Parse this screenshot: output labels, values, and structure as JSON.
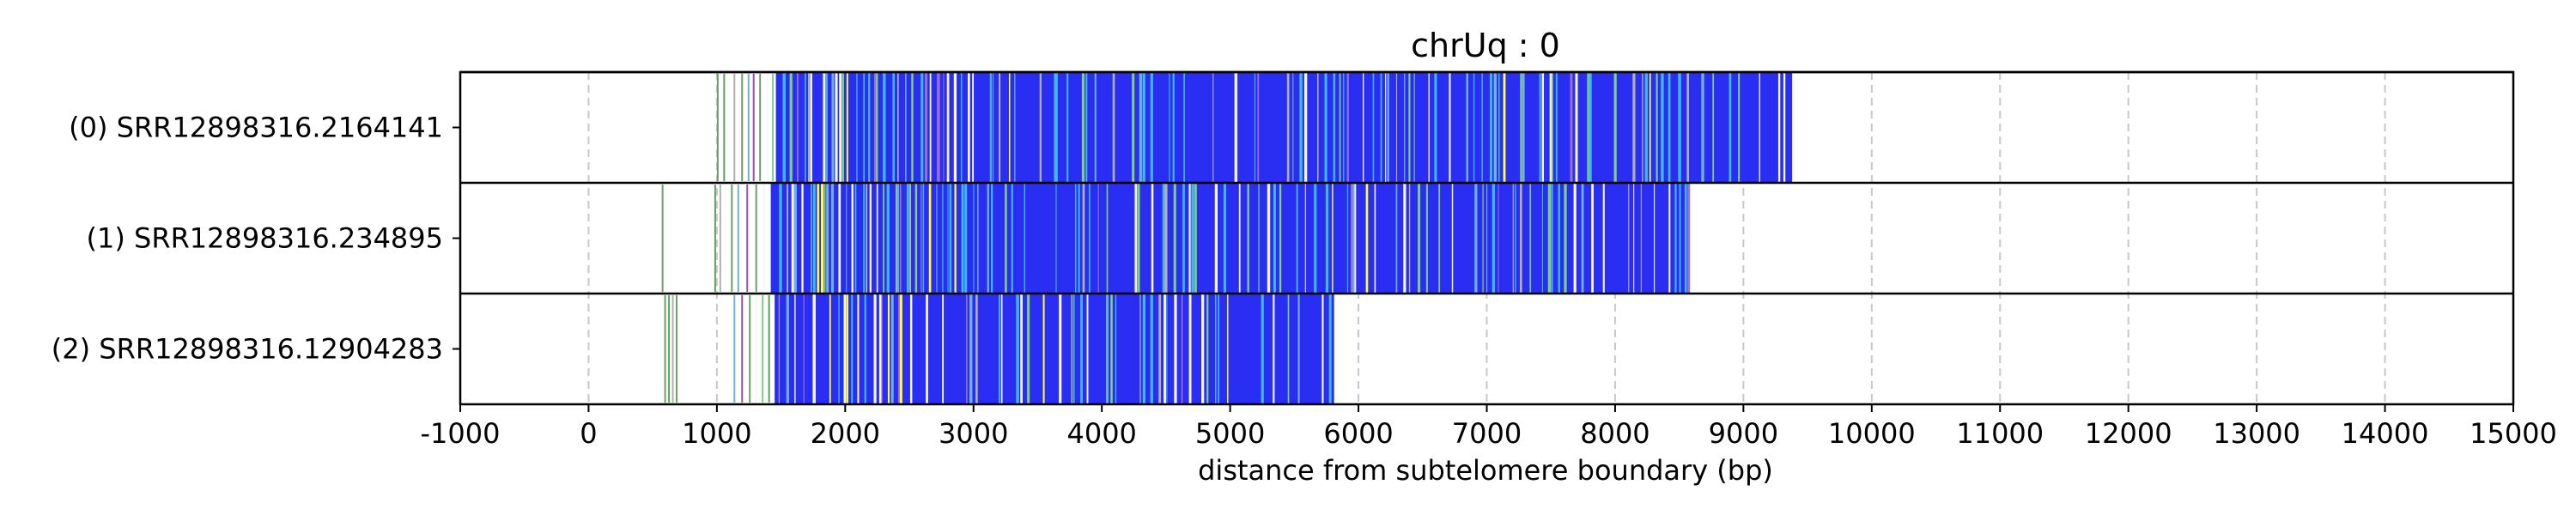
{
  "chart_data": {
    "type": "bar",
    "title": "chrUq : 0",
    "xlabel": "distance from subtelomere boundary (bp)",
    "ylabel": "",
    "xlim": [
      -1000,
      15000
    ],
    "xticks": [
      -1000,
      0,
      1000,
      2000,
      3000,
      4000,
      5000,
      6000,
      7000,
      8000,
      9000,
      10000,
      11000,
      12000,
      13000,
      14000,
      15000
    ],
    "grid": "x dashed",
    "colors": {
      "main": "#2a2ef2",
      "accents": [
        "#3fb8f0",
        "#f7f7f7",
        "#7fcf7f",
        "#ffff33",
        "#b0b0b0",
        "#9a6fd0",
        "#6fb0e0",
        "#a04da6"
      ]
    },
    "series": [
      {
        "name": "(0) SRR12898316.2164141",
        "end": 9380,
        "sparse_ticks": [
          1000,
          1050,
          1130,
          1190,
          1240,
          1280,
          1330,
          1390,
          1430
        ],
        "dense_start": 1460
      },
      {
        "name": "(1) SRR12898316.234895",
        "end": 8580,
        "sparse_ticks": [
          570,
          980,
          1020,
          1110,
          1160,
          1230,
          1300,
          1360
        ],
        "dense_start": 1420
      },
      {
        "name": "(2) SRR12898316.12904283",
        "end": 5810,
        "sparse_ticks": [
          590,
          620,
          650,
          680,
          1130,
          1190,
          1250,
          1300,
          1350,
          1400
        ],
        "dense_start": 1450
      }
    ]
  }
}
